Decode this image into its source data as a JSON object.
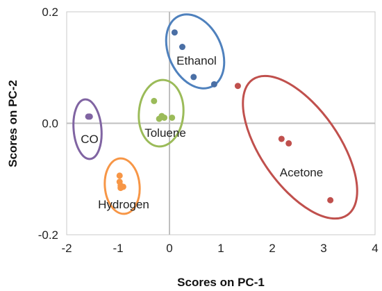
{
  "chart_data": {
    "type": "scatter",
    "xlabel": "Scores on PC-1",
    "ylabel": "Scores on PC-2",
    "xlim": [
      -2,
      4
    ],
    "ylim": [
      -0.2,
      0.2
    ],
    "x_ticks": [
      -2,
      -1,
      0,
      1,
      2,
      3,
      4
    ],
    "y_ticks": [
      0.2,
      0.0,
      -0.2
    ],
    "y_tick_labels": [
      "0.2",
      "0.0",
      "-0.2"
    ],
    "grid": false,
    "zero_lines": true,
    "series": [
      {
        "name": "Ethanol",
        "color": "#4a6fa5",
        "ellipse_color": "#4f81bd",
        "x": [
          0.1,
          0.25,
          0.47,
          0.87
        ],
        "y": [
          0.163,
          0.137,
          0.083,
          0.07
        ]
      },
      {
        "name": "Acetone",
        "color": "#c0504d",
        "ellipse_color": "#c0504d",
        "x": [
          1.33,
          2.18,
          2.32,
          3.13
        ],
        "y": [
          0.067,
          -0.028,
          -0.036,
          -0.138
        ]
      },
      {
        "name": "Toluene",
        "color": "#9bbb59",
        "ellipse_color": "#9bbb59",
        "x": [
          -0.3,
          -0.2,
          -0.15,
          -0.1,
          0.05
        ],
        "y": [
          0.04,
          0.008,
          0.013,
          0.01,
          0.01
        ]
      },
      {
        "name": "CO",
        "color": "#8064a2",
        "ellipse_color": "#8064a2",
        "x": [
          -1.58,
          -1.55
        ],
        "y": [
          0.012,
          0.012
        ]
      },
      {
        "name": "Hydrogen",
        "color": "#f79646",
        "ellipse_color": "#f79646",
        "x": [
          -0.97,
          -0.97,
          -0.95,
          -0.95,
          -0.9
        ],
        "y": [
          -0.094,
          -0.105,
          -0.112,
          -0.116,
          -0.114
        ]
      }
    ]
  }
}
